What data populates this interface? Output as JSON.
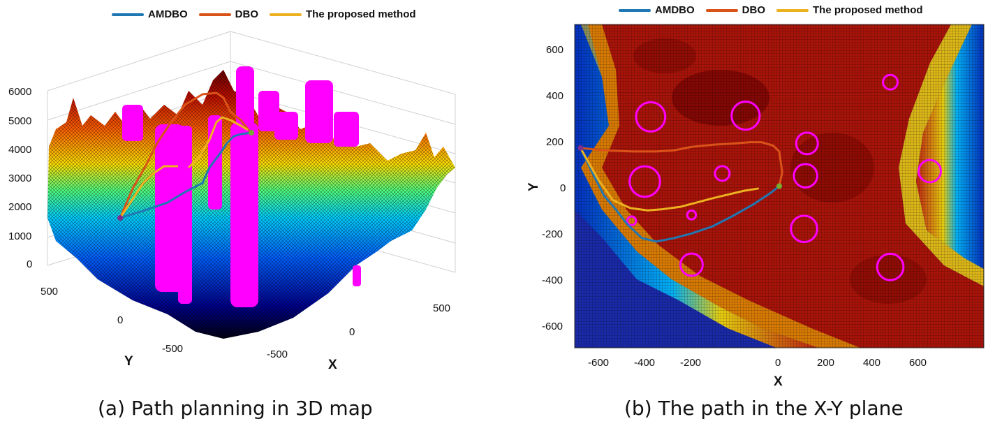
{
  "colors": {
    "amdbo": "#1f77b4",
    "dbo": "#d95319",
    "proposed": "#edb120",
    "obstacle": "#ff00ff",
    "start_marker": "#7e2f8e",
    "goal_marker": "#77ac30"
  },
  "legend": [
    {
      "name": "AMDBO",
      "color": "#1f77b4"
    },
    {
      "name": "DBO",
      "color": "#d95319"
    },
    {
      "name": "The proposed method",
      "color": "#edb120"
    }
  ],
  "captions": {
    "a": "(a) Path planning in 3D map",
    "b": "(b) The path in the X-Y plane"
  },
  "chart_data": [
    {
      "type": "surface3d",
      "title": "",
      "xlabel": "X",
      "ylabel": "Y",
      "zlabel": "",
      "x_ticks": [
        "-500",
        "0",
        "500"
      ],
      "y_ticks": [
        "500",
        "0",
        "-500"
      ],
      "z_ticks": [
        "0",
        "1000",
        "2000",
        "3000",
        "4000",
        "5000",
        "6000"
      ],
      "zlim": [
        0,
        6000
      ],
      "colormap": "jet",
      "grid": true,
      "legend_position": "top",
      "series": [
        {
          "name": "AMDBO",
          "color": "#1f77b4"
        },
        {
          "name": "DBO",
          "color": "#d95319"
        },
        {
          "name": "The proposed method",
          "color": "#edb120"
        }
      ]
    },
    {
      "type": "heatmap",
      "title": "",
      "xlabel": "X",
      "ylabel": "Y",
      "xlim": [
        -700,
        700
      ],
      "ylim": [
        -700,
        700
      ],
      "x_ticks": [
        "-600",
        "-400",
        "-200",
        "0",
        "200",
        "400",
        "600"
      ],
      "y_ticks": [
        "600",
        "400",
        "200",
        "0",
        "-200",
        "-400",
        "-600"
      ],
      "colormap": "jet",
      "legend_position": "top",
      "start": [
        -680,
        165
      ],
      "goal": [
        0,
        0
      ],
      "series": [
        {
          "name": "AMDBO",
          "color": "#1f77b4",
          "x": [
            -680,
            -640,
            -600,
            -560,
            -520,
            -470,
            -420,
            -360,
            -300,
            -230,
            -160,
            -90,
            -30,
            0
          ],
          "y": [
            165,
            60,
            -40,
            -100,
            -165,
            -225,
            -240,
            -225,
            -205,
            -175,
            -130,
            -80,
            -30,
            0
          ]
        },
        {
          "name": "DBO",
          "color": "#d95319",
          "x": [
            -680,
            -600,
            -500,
            -420,
            -360,
            -300,
            -220,
            -150,
            -100,
            -60,
            -20,
            0,
            10,
            0
          ],
          "y": [
            165,
            155,
            150,
            150,
            155,
            170,
            180,
            185,
            190,
            190,
            175,
            150,
            60,
            0
          ]
        },
        {
          "name": "The proposed method",
          "color": "#edb120",
          "x": [
            -680,
            -620,
            -570,
            -510,
            -450,
            -400,
            -340,
            -280,
            -220,
            -170,
            -120,
            -70
          ],
          "y": [
            165,
            30,
            -60,
            -95,
            -105,
            -100,
            -90,
            -70,
            -50,
            -35,
            -20,
            -10
          ]
        }
      ],
      "obstacles": [
        {
          "x": -440,
          "y": 300,
          "r": 50
        },
        {
          "x": -115,
          "y": 305,
          "r": 48
        },
        {
          "x": -460,
          "y": 20,
          "r": 52
        },
        {
          "x": -195,
          "y": 55,
          "r": 25
        },
        {
          "x": 95,
          "y": 185,
          "r": 37
        },
        {
          "x": 90,
          "y": 45,
          "r": 40
        },
        {
          "x": 380,
          "y": 450,
          "r": 25
        },
        {
          "x": 515,
          "y": 65,
          "r": 38
        },
        {
          "x": -505,
          "y": -150,
          "r": 15
        },
        {
          "x": -300,
          "y": -125,
          "r": 15
        },
        {
          "x": 85,
          "y": -185,
          "r": 45
        },
        {
          "x": -300,
          "y": -340,
          "r": 38
        },
        {
          "x": 380,
          "y": -350,
          "r": 45
        }
      ]
    }
  ]
}
